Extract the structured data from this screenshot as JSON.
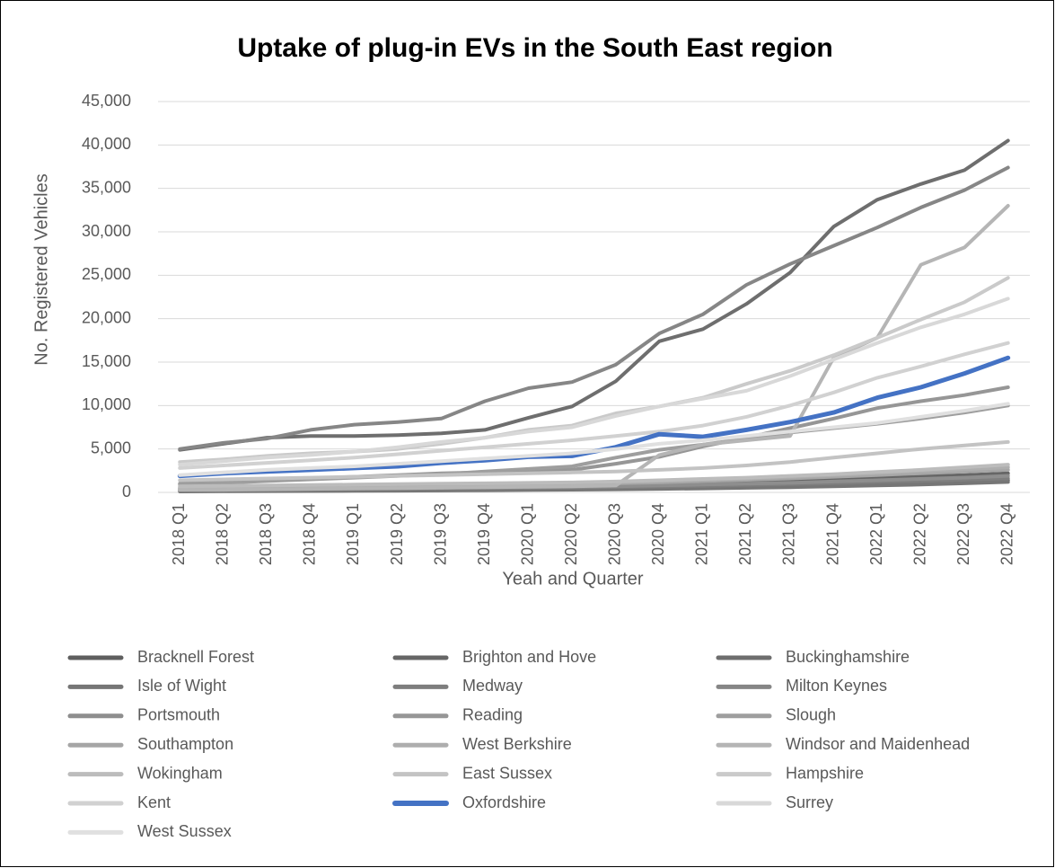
{
  "chart_data": {
    "type": "line",
    "title": "Uptake of plug-in EVs in the South East region",
    "x_label": "Yeah and Quarter",
    "y_label": "No. Registered Vehicles",
    "categories": [
      "2018 Q1",
      "2018 Q2",
      "2018 Q3",
      "2018 Q4",
      "2019 Q1",
      "2019 Q2",
      "2019 Q3",
      "2019 Q4",
      "2020 Q1",
      "2020 Q2",
      "2020 Q3",
      "2020 Q4",
      "2021 Q1",
      "2021 Q2",
      "2021 Q3",
      "2021 Q4",
      "2022 Q1",
      "2022 Q2",
      "2022 Q3",
      "2022 Q4"
    ],
    "ylim": [
      0,
      45000
    ],
    "yticks": [
      0,
      {
        "value": 5000,
        "label": "5,000"
      },
      {
        "value": 10000,
        "label": "10,000"
      },
      {
        "value": 15000,
        "label": "15,000"
      },
      {
        "value": 20000,
        "label": "20,000"
      },
      {
        "value": 25000,
        "label": "25,000"
      },
      {
        "value": 30000,
        "label": "30,000"
      },
      {
        "value": 35000,
        "label": "35,000"
      },
      {
        "value": 40000,
        "label": "40,000"
      },
      {
        "value": 45000,
        "label": "45,000"
      }
    ],
    "grid": true,
    "legend": "bottom",
    "series": [
      {
        "name": "Bracknell Forest",
        "color": "#5f5f5f",
        "values": [
          200,
          230,
          260,
          290,
          320,
          350,
          380,
          410,
          450,
          490,
          540,
          600,
          680,
          760,
          850,
          950,
          1050,
          1150,
          1270,
          1400
        ]
      },
      {
        "name": "Brighton and Hove",
        "color": "#666666",
        "values": [
          400,
          450,
          500,
          550,
          600,
          650,
          700,
          750,
          800,
          850,
          900,
          1000,
          1100,
          1200,
          1350,
          1500,
          1650,
          1850,
          2000,
          2200
        ]
      },
      {
        "name": "Buckinghamshire",
        "color": "#6e6e6e",
        "values": [
          4900,
          5600,
          6300,
          6500,
          6500,
          6600,
          6800,
          7200,
          8600,
          9900,
          12800,
          17400,
          18800,
          21700,
          25300,
          30600,
          33700,
          35500,
          37100,
          40500
        ]
      },
      {
        "name": "Isle of Wight",
        "color": "#767676",
        "values": [
          100,
          120,
          140,
          160,
          180,
          200,
          220,
          250,
          280,
          310,
          350,
          400,
          460,
          530,
          600,
          700,
          800,
          900,
          1050,
          1200
        ]
      },
      {
        "name": "Medway",
        "color": "#7e7e7e",
        "values": [
          250,
          280,
          310,
          340,
          370,
          400,
          430,
          460,
          500,
          540,
          600,
          680,
          760,
          850,
          950,
          1050,
          1200,
          1300,
          1450,
          1600
        ]
      },
      {
        "name": "Milton Keynes",
        "color": "#868686",
        "values": [
          5000,
          5700,
          6200,
          7200,
          7800,
          8100,
          8500,
          10500,
          12000,
          12700,
          14700,
          18300,
          20500,
          23900,
          26300,
          28400,
          30500,
          32800,
          34800,
          37400
        ]
      },
      {
        "name": "Portsmouth",
        "color": "#8e8e8e",
        "values": [
          300,
          330,
          360,
          400,
          440,
          480,
          520,
          560,
          600,
          650,
          700,
          800,
          900,
          1000,
          1100,
          1250,
          1400,
          1550,
          1700,
          1900
        ]
      },
      {
        "name": "Reading",
        "color": "#969696",
        "values": [
          1000,
          1200,
          1400,
          1600,
          1800,
          2000,
          2200,
          2300,
          2500,
          2600,
          3300,
          4100,
          5300,
          6300,
          7400,
          8500,
          9700,
          10500,
          11200,
          12100
        ]
      },
      {
        "name": "Slough",
        "color": "#9e9e9e",
        "values": [
          900,
          1100,
          1300,
          1500,
          1700,
          1900,
          2100,
          2400,
          2700,
          3000,
          4000,
          4900,
          5500,
          6200,
          6900,
          7400,
          7900,
          8500,
          9200,
          10000
        ]
      },
      {
        "name": "Southampton",
        "color": "#a6a6a6",
        "values": [
          500,
          550,
          600,
          650,
          700,
          750,
          800,
          850,
          900,
          950,
          1050,
          1150,
          1300,
          1450,
          1600,
          1800,
          2000,
          2200,
          2400,
          2600
        ]
      },
      {
        "name": "West Berkshire",
        "color": "#aeaeae",
        "values": [
          600,
          650,
          700,
          750,
          800,
          850,
          900,
          950,
          1000,
          1050,
          1150,
          1300,
          1450,
          1600,
          1800,
          2000,
          2200,
          2450,
          2650,
          2900
        ]
      },
      {
        "name": "Windsor and Maidenhead",
        "color": "#b5b5b5",
        "values": [
          300,
          300,
          350,
          400,
          450,
          500,
          550,
          600,
          650,
          700,
          800,
          4300,
          5500,
          6000,
          6500,
          15500,
          17800,
          26200,
          28200,
          33000
        ]
      },
      {
        "name": "Wokingham",
        "color": "#bcbcbc",
        "values": [
          700,
          750,
          800,
          850,
          900,
          950,
          1000,
          1050,
          1100,
          1150,
          1250,
          1400,
          1550,
          1700,
          1900,
          2100,
          2350,
          2600,
          2900,
          3200
        ]
      },
      {
        "name": "East Sussex",
        "color": "#c3c3c3",
        "values": [
          1400,
          1500,
          1600,
          1700,
          1800,
          1900,
          2000,
          2100,
          2200,
          2300,
          2400,
          2600,
          2800,
          3100,
          3500,
          4000,
          4500,
          5000,
          5400,
          5800
        ]
      },
      {
        "name": "Hampshire",
        "color": "#cacaca",
        "values": [
          3500,
          3800,
          4200,
          4500,
          4700,
          5000,
          5600,
          6300,
          7200,
          7700,
          9100,
          9900,
          10900,
          12500,
          14000,
          15800,
          17800,
          19900,
          21900,
          24700
        ]
      },
      {
        "name": "Kent",
        "color": "#d1d1d1",
        "values": [
          2800,
          3100,
          3400,
          3700,
          4000,
          4400,
          4800,
          5200,
          5600,
          6000,
          6500,
          7000,
          7700,
          8700,
          10000,
          11500,
          13200,
          14500,
          15900,
          17200
        ]
      },
      {
        "name": "Oxfordshire",
        "color": "#4472c4",
        "values": [
          1900,
          2200,
          2400,
          2600,
          2800,
          3000,
          3400,
          3700,
          4100,
          4200,
          5200,
          6700,
          6400,
          7200,
          8100,
          9200,
          10900,
          12100,
          13700,
          15500
        ]
      },
      {
        "name": "Surrey",
        "color": "#d8d8d8",
        "values": [
          3200,
          3600,
          4000,
          4300,
          4700,
          5200,
          5800,
          6300,
          7000,
          7500,
          8800,
          9900,
          10800,
          11700,
          13400,
          15300,
          17200,
          19000,
          20500,
          22300
        ]
      },
      {
        "name": "West Sussex",
        "color": "#e0e0e0",
        "values": [
          2000,
          2300,
          2600,
          2800,
          3000,
          3300,
          3600,
          3900,
          4200,
          4500,
          5000,
          5600,
          6000,
          6500,
          7000,
          7500,
          8000,
          8700,
          9400,
          10200
        ]
      }
    ]
  }
}
